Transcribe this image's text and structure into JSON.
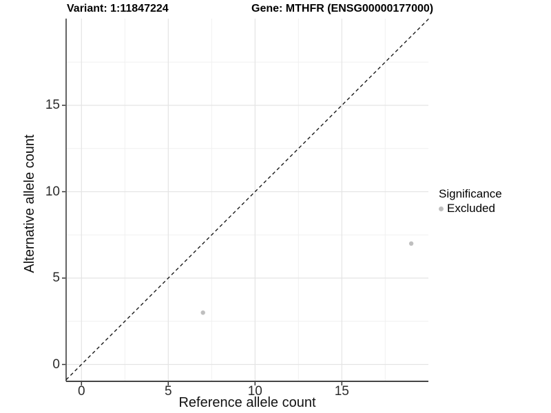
{
  "header": {
    "title_left": "Variant: 1:11847224",
    "title_right": "Gene: MTHFR (ENSG00000177000)"
  },
  "chart_data": {
    "type": "scatter",
    "title": "Variant: 1:11847224 / Gene: MTHFR (ENSG00000177000)",
    "xlabel": "Reference allele count",
    "ylabel": "Alternative allele count",
    "xlim": [
      -0.885,
      20.0
    ],
    "ylim": [
      -0.98,
      20.02
    ],
    "x_major_ticks": [
      0,
      5,
      10,
      15
    ],
    "y_major_ticks": [
      0,
      5,
      10,
      15
    ],
    "x_minor_ticks": [
      2.5,
      7.5,
      12.5,
      17.5
    ],
    "y_minor_ticks": [
      2.5,
      7.5,
      12.5,
      17.5
    ],
    "grid": "on",
    "identity_line": {
      "slope": 1,
      "intercept": 0,
      "style": "dashed",
      "color": "#1a1a1a"
    },
    "series": [
      {
        "name": "Excluded",
        "color": "#bfbfbf",
        "points": [
          {
            "x": 7,
            "y": 3
          },
          {
            "x": 19,
            "y": 7
          }
        ]
      }
    ],
    "legend": {
      "position": "right",
      "title": "Significance",
      "entries": [
        {
          "label": "Excluded",
          "color": "#bfbfbf"
        }
      ]
    }
  },
  "colors": {
    "background": "#ffffff",
    "grid_major": "#e4e4e4",
    "grid_minor": "#f0f0f0",
    "axis_line_bottom": "#454545",
    "axis_line_left": "#222222",
    "tick_mark": "#333333",
    "point": "#bfbfbf",
    "identity_line": "#1a1a1a"
  }
}
